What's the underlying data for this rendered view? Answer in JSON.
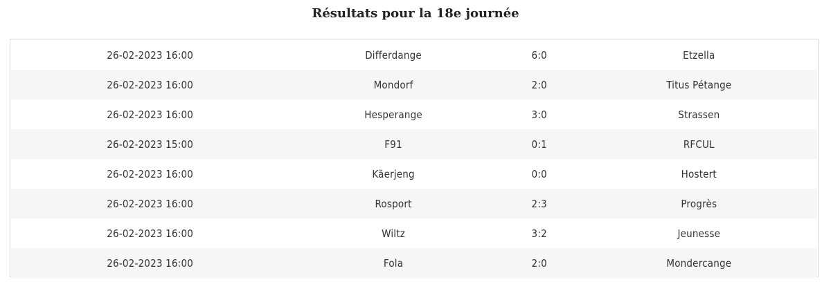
{
  "title": "Résultats pour la 18e journée",
  "matches": [
    {
      "datetime": "26-02-2023 16:00",
      "home": "Differdange",
      "score": "6:0",
      "away": "Etzella"
    },
    {
      "datetime": "26-02-2023 16:00",
      "home": "Mondorf",
      "score": "2:0",
      "away": "Titus Pétange"
    },
    {
      "datetime": "26-02-2023 16:00",
      "home": "Hesperange",
      "score": "3:0",
      "away": "Strassen"
    },
    {
      "datetime": "26-02-2023 15:00",
      "home": "F91",
      "score": "0:1",
      "away": "RFCUL"
    },
    {
      "datetime": "26-02-2023 16:00",
      "home": "Käerjeng",
      "score": "0:0",
      "away": "Hostert"
    },
    {
      "datetime": "26-02-2023 16:00",
      "home": "Rosport",
      "score": "2:3",
      "away": "Progrès"
    },
    {
      "datetime": "26-02-2023 16:00",
      "home": "Wiltz",
      "score": "3:2",
      "away": "Jeunesse"
    },
    {
      "datetime": "26-02-2023 16:00",
      "home": "Fola",
      "score": "2:0",
      "away": "Mondercange"
    }
  ]
}
